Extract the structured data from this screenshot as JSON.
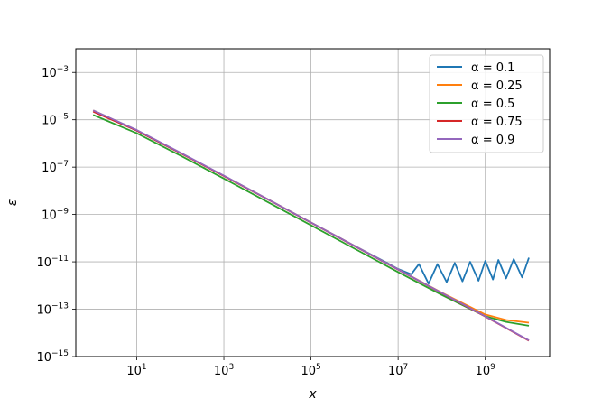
{
  "chart_data": {
    "type": "line",
    "title": "",
    "xlabel": "x",
    "ylabel": "ε",
    "xscale": "log",
    "yscale": "log",
    "xlim": [
      0.4,
      30000000000
    ],
    "ylim": [
      1e-15,
      0.01
    ],
    "grid": true,
    "legend_position": "top-right",
    "x_ticks": [
      {
        "base": "10",
        "exp": "1",
        "value": 10
      },
      {
        "base": "10",
        "exp": "3",
        "value": 1000
      },
      {
        "base": "10",
        "exp": "5",
        "value": 100000
      },
      {
        "base": "10",
        "exp": "7",
        "value": 10000000
      },
      {
        "base": "10",
        "exp": "9",
        "value": 1000000000
      }
    ],
    "y_ticks": [
      {
        "base": "10",
        "exp": "−3",
        "value": 0.001
      },
      {
        "base": "10",
        "exp": "−5",
        "value": 1e-05
      },
      {
        "base": "10",
        "exp": "−7",
        "value": 1e-07
      },
      {
        "base": "10",
        "exp": "−9",
        "value": 1e-09
      },
      {
        "base": "10",
        "exp": "−11",
        "value": 1e-11
      },
      {
        "base": "10",
        "exp": "−13",
        "value": 1e-13
      },
      {
        "base": "10",
        "exp": "−15",
        "value": 1e-15
      }
    ],
    "series": [
      {
        "name": "α = 0.1",
        "color": "#1f77b4",
        "x": [
          1,
          10,
          100,
          1000,
          10000,
          100000,
          1000000,
          5000000,
          10000000,
          20000000,
          30000000,
          50000000,
          80000000,
          130000000,
          200000000,
          300000000,
          450000000,
          700000000,
          1000000000,
          1500000000,
          2000000000,
          3000000000,
          4500000000,
          7000000000,
          10000000000
        ],
        "y": [
          2.5e-05,
          3.5e-06,
          4e-07,
          4.3e-08,
          4.5e-09,
          4.6e-10,
          4.7e-11,
          1e-11,
          5e-12,
          3e-12,
          8e-12,
          1.2e-12,
          8e-12,
          1.4e-12,
          9e-12,
          1.5e-12,
          1e-11,
          1.6e-12,
          1.1e-11,
          1.8e-12,
          1.2e-11,
          2e-12,
          1.3e-11,
          2.2e-12,
          1.5e-11
        ]
      },
      {
        "name": "α = 0.25",
        "color": "#ff7f0e",
        "x": [
          1,
          10,
          100,
          1000,
          10000,
          100000,
          1000000,
          10000000,
          100000000,
          1000000000,
          3000000000,
          10000000000
        ],
        "y": [
          2.5e-05,
          3.6e-06,
          4e-07,
          4.3e-08,
          4.5e-09,
          4.6e-10,
          4.7e-11,
          4.8e-12,
          5e-13,
          6e-14,
          3.5e-14,
          2.7e-14
        ]
      },
      {
        "name": "α = 0.5",
        "color": "#2ca02c",
        "x": [
          1,
          10,
          100,
          1000,
          10000,
          100000,
          1000000,
          10000000,
          100000000,
          1000000000,
          3000000000,
          10000000000
        ],
        "y": [
          1.6e-05,
          2.7e-06,
          3.1e-07,
          3.3e-08,
          3.4e-09,
          3.5e-10,
          3.6e-11,
          3.7e-12,
          4e-13,
          5e-14,
          2.9e-14,
          2e-14
        ]
      },
      {
        "name": "α = 0.75",
        "color": "#d62728",
        "x": [
          1,
          10,
          100,
          1000,
          10000,
          100000,
          1000000,
          10000000,
          100000000,
          1000000000,
          10000000000
        ],
        "y": [
          2.2e-05,
          3.5e-06,
          3.9e-07,
          4.2e-08,
          4.4e-09,
          4.5e-10,
          4.6e-11,
          4.7e-12,
          4.8e-13,
          4.9e-14,
          4.7e-15
        ]
      },
      {
        "name": "α = 0.9",
        "color": "#9467bd",
        "x": [
          1,
          10,
          100,
          1000,
          10000,
          100000,
          1000000,
          10000000,
          100000000,
          1000000000,
          10000000000
        ],
        "y": [
          2.5e-05,
          3.7e-06,
          4.1e-07,
          4.4e-08,
          4.5e-09,
          4.6e-10,
          4.7e-11,
          4.8e-12,
          4.9e-13,
          5e-14,
          4.8e-15
        ]
      }
    ]
  }
}
